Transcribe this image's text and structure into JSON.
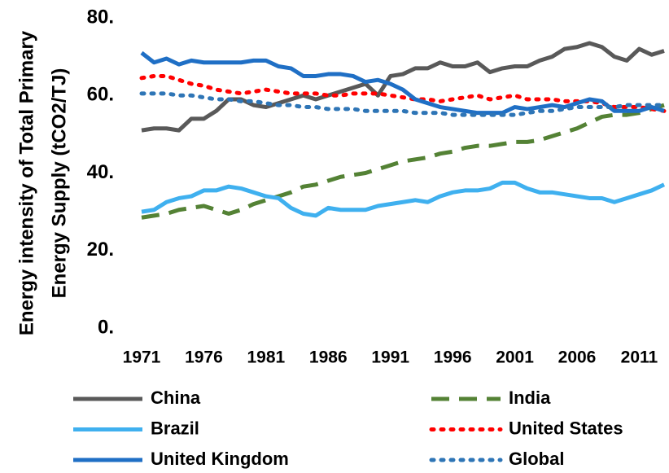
{
  "chart_data": {
    "type": "line",
    "y_label": [
      "Energy intensity of Total Primary",
      "Energy Supply (tCO2/TJ)"
    ],
    "x": [
      1971,
      1972,
      1973,
      1974,
      1975,
      1976,
      1977,
      1978,
      1979,
      1980,
      1981,
      1982,
      1983,
      1984,
      1985,
      1986,
      1987,
      1988,
      1989,
      1990,
      1991,
      1992,
      1993,
      1994,
      1995,
      1996,
      1997,
      1998,
      1999,
      2000,
      2001,
      2002,
      2003,
      2004,
      2005,
      2006,
      2007,
      2008,
      2009,
      2010,
      2011,
      2012,
      2013
    ],
    "xlim": [
      1971,
      2013
    ],
    "xticks": [
      1971,
      1976,
      1981,
      1986,
      1991,
      1996,
      2001,
      2006,
      2011
    ],
    "ylim": [
      0,
      80
    ],
    "yticks": [
      {
        "value": 0,
        "label": "0."
      },
      {
        "value": 20,
        "label": "20."
      },
      {
        "value": 40,
        "label": "40."
      },
      {
        "value": 60,
        "label": "60."
      },
      {
        "value": 80,
        "label": "80."
      }
    ],
    "grid": false,
    "series": [
      {
        "name": "China",
        "color": "#595959",
        "style": "solid",
        "values": [
          51,
          51.5,
          51.5,
          51,
          54,
          54,
          56,
          59,
          59,
          57.5,
          57,
          58,
          59,
          60,
          59,
          60,
          61,
          62,
          63,
          60,
          65,
          65.5,
          67,
          67,
          68.5,
          67.5,
          67.5,
          68.5,
          66,
          67,
          67.5,
          67.5,
          69,
          70,
          72,
          72.5,
          73.5,
          72.5,
          70,
          69,
          72,
          70.5,
          71.5
        ]
      },
      {
        "name": "India",
        "color": "#548235",
        "style": "dashed",
        "values": [
          28.5,
          29,
          29.5,
          30.5,
          31,
          31.5,
          30.5,
          29.5,
          30.5,
          32,
          33,
          34,
          35,
          36.5,
          37,
          38,
          39,
          39.5,
          40,
          41,
          42,
          43,
          43.5,
          44,
          45,
          45.5,
          46.5,
          47,
          47,
          47.5,
          48,
          48,
          48.5,
          49.5,
          50.5,
          51.5,
          53,
          54.5,
          55,
          55,
          55.5,
          56.5,
          57.5
        ]
      },
      {
        "name": "Brazil",
        "color": "#3fb0ef",
        "style": "solid",
        "values": [
          30,
          30.5,
          32.5,
          33.5,
          34,
          35.5,
          35.5,
          36.5,
          36,
          35,
          34,
          33.5,
          31,
          29.5,
          29,
          31,
          30.5,
          30.5,
          30.5,
          31.5,
          32,
          32.5,
          33,
          32.5,
          34,
          35,
          35.5,
          35.5,
          36,
          37.5,
          37.5,
          36,
          35,
          35,
          34.5,
          34,
          33.5,
          33.5,
          32.5,
          33.5,
          34.5,
          35.5,
          37
        ]
      },
      {
        "name": "United States",
        "color": "#ff0000",
        "style": "dotted",
        "values": [
          64.5,
          65,
          65,
          64,
          63,
          62.5,
          61.5,
          61,
          60.5,
          61,
          61.5,
          61,
          60.5,
          60.5,
          60.5,
          60,
          60,
          60.5,
          60.5,
          60.5,
          60,
          59.5,
          59,
          59,
          58.5,
          59,
          59.5,
          60,
          59,
          59.5,
          60,
          59,
          59,
          59,
          58.5,
          58.5,
          58.5,
          58,
          57,
          57,
          57,
          56.5,
          56
        ]
      },
      {
        "name": "United Kingdom",
        "color": "#1f6fc5",
        "style": "solid",
        "values": [
          71,
          68.5,
          69.5,
          68,
          69,
          68.5,
          68.5,
          68.5,
          68.5,
          69,
          69,
          67.5,
          67,
          65,
          65,
          65.5,
          65.5,
          65,
          63.5,
          64,
          63,
          61.5,
          59,
          58,
          57,
          56.5,
          56,
          55.5,
          55.5,
          55.5,
          57,
          56.5,
          57,
          57.5,
          57,
          58,
          59,
          58.5,
          56,
          56,
          56,
          57,
          56
        ]
      },
      {
        "name": "Global",
        "color": "#2e75b6",
        "style": "dotted",
        "values": [
          60.5,
          60.5,
          60.5,
          60,
          60,
          59.5,
          59,
          59,
          58.5,
          58.5,
          58,
          57.5,
          57.5,
          57,
          57,
          56.5,
          56.5,
          56.5,
          56,
          56,
          56,
          56,
          55.5,
          55.5,
          55.5,
          55,
          55,
          55,
          55,
          55,
          55,
          55.5,
          56,
          56,
          56.5,
          57,
          57,
          57,
          57,
          57.5,
          57.5,
          57.5,
          57.5
        ]
      }
    ]
  }
}
